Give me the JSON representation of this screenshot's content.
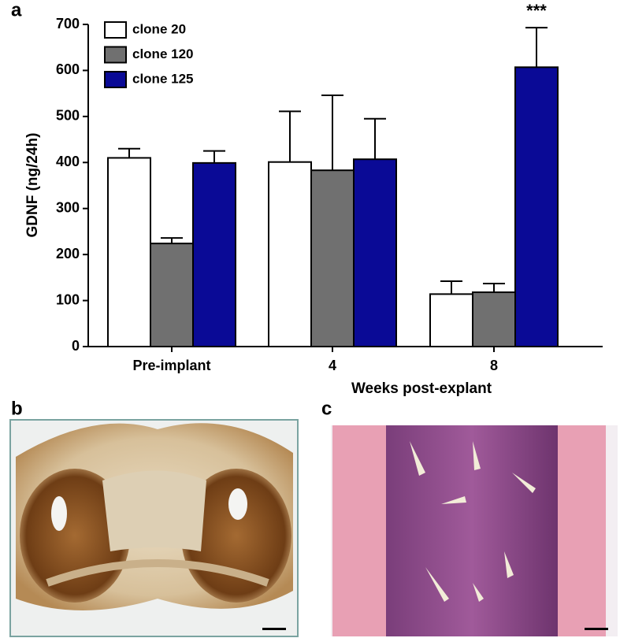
{
  "panel_labels": [
    "a",
    "b",
    "c"
  ],
  "chart_data": {
    "type": "bar",
    "categories": [
      "Pre-implant",
      "4",
      "8"
    ],
    "x_label": "Weeks post-explant",
    "y_label": "GDNF (ng/24h)",
    "annotation": "***",
    "ylim": [
      0,
      700
    ],
    "yticks": [
      0,
      100,
      200,
      300,
      400,
      500,
      600,
      700
    ],
    "legend": "top-left",
    "series": [
      {
        "name": "clone 20",
        "color": "#ffffff",
        "values": [
          410,
          401,
          114
        ],
        "errors": [
          20,
          110,
          28
        ]
      },
      {
        "name": "clone 120",
        "color": "#707070",
        "values": [
          224,
          383,
          118
        ],
        "errors": [
          12,
          163,
          19
        ]
      },
      {
        "name": "clone 125",
        "color": "#0a0a96",
        "values": [
          399,
          407,
          607
        ],
        "errors": [
          26,
          88,
          86
        ]
      }
    ]
  }
}
